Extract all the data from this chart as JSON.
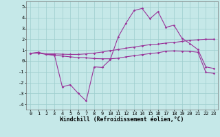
{
  "xlabel": "Windchill (Refroidissement éolien,°C)",
  "xlim": [
    -0.5,
    23.5
  ],
  "ylim": [
    -4.5,
    5.5
  ],
  "yticks": [
    -4,
    -3,
    -2,
    -1,
    0,
    1,
    2,
    3,
    4,
    5
  ],
  "xticks": [
    0,
    1,
    2,
    3,
    4,
    5,
    6,
    7,
    8,
    9,
    10,
    11,
    12,
    13,
    14,
    15,
    16,
    17,
    18,
    19,
    20,
    21,
    22,
    23
  ],
  "background_color": "#c5e8e8",
  "grid_color": "#9ecece",
  "line_color": "#993399",
  "line1_y": [
    0.7,
    0.8,
    0.6,
    0.6,
    -2.4,
    -2.2,
    -3.0,
    -3.7,
    -0.55,
    -0.6,
    0.1,
    2.2,
    3.5,
    4.65,
    4.85,
    3.9,
    4.55,
    3.1,
    3.3,
    2.1,
    1.6,
    1.05,
    -0.55,
    -0.7
  ],
  "line2_y": [
    0.7,
    0.75,
    0.65,
    0.65,
    0.62,
    0.6,
    0.6,
    0.65,
    0.72,
    0.82,
    0.95,
    1.05,
    1.18,
    1.28,
    1.4,
    1.5,
    1.55,
    1.65,
    1.7,
    1.8,
    1.9,
    1.95,
    2.0,
    2.0
  ],
  "line3_y": [
    0.7,
    0.72,
    0.6,
    0.5,
    0.45,
    0.38,
    0.3,
    0.28,
    0.22,
    0.2,
    0.2,
    0.25,
    0.38,
    0.48,
    0.58,
    0.68,
    0.75,
    0.9,
    0.92,
    0.9,
    0.88,
    0.8,
    -1.05,
    -1.15
  ],
  "marker": "D",
  "marker_size": 1.8,
  "line_width": 0.8,
  "xlabel_fontsize": 5.8,
  "tick_fontsize": 5.0
}
